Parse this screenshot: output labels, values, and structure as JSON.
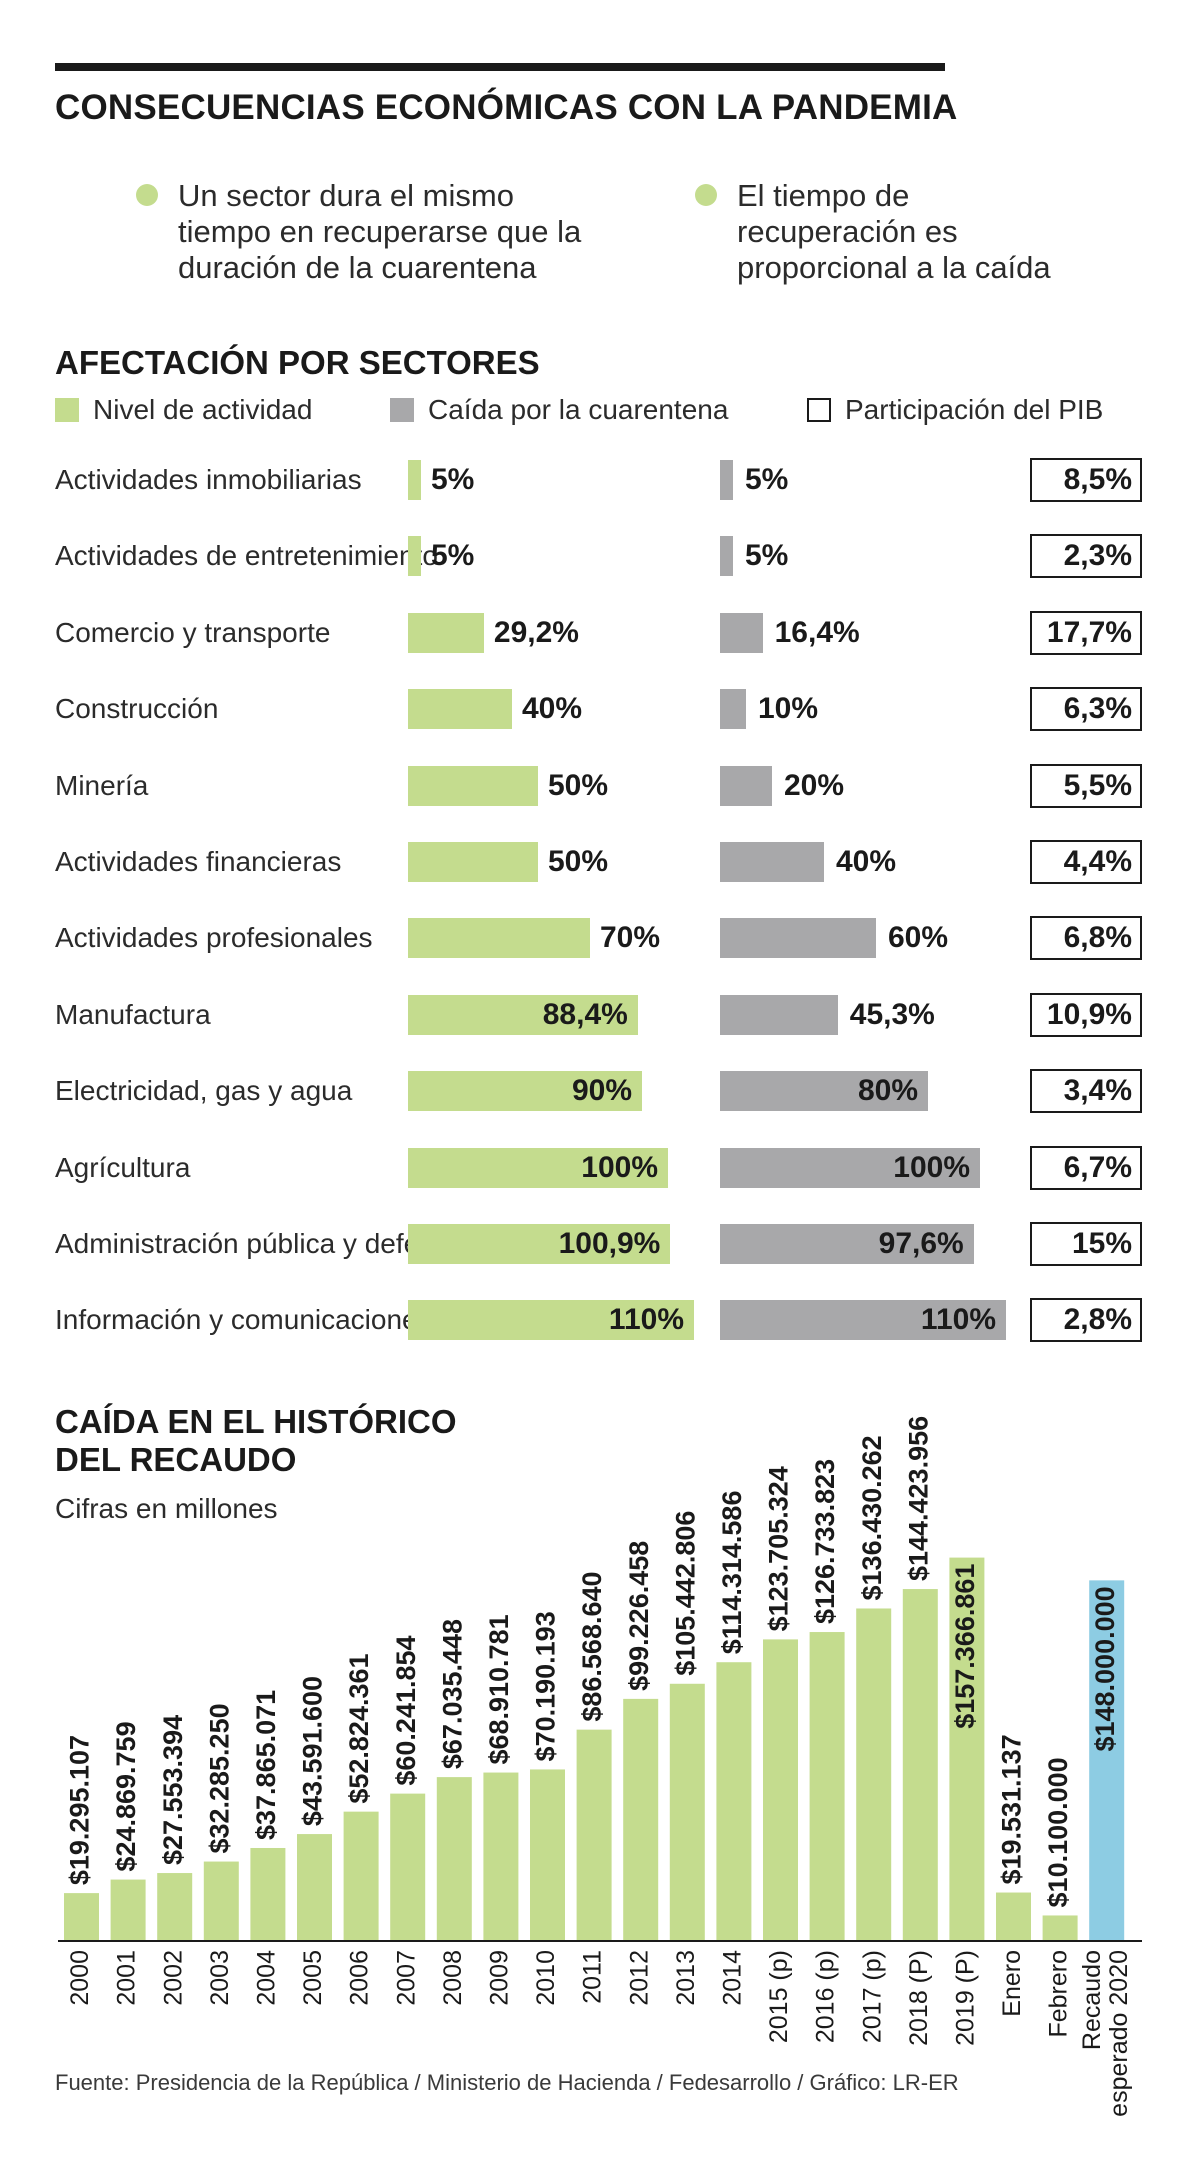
{
  "title": "CONSECUENCIAS ECONÓMICAS CON LA PANDEMIA",
  "bullets": [
    [
      "Un sector dura el mismo",
      "tiempo en recuperarse que la",
      "duración de la cuarentena"
    ],
    [
      "El tiempo de",
      "recuperación es",
      "proporcional a la caída"
    ]
  ],
  "colors": {
    "activity": "#c4dc8e",
    "drop": "#a8a8aa",
    "target": "#8dcce3",
    "bullet": "#c4dc8e"
  },
  "chart_data": [
    {
      "type": "bar",
      "orientation": "horizontal",
      "title": "AFECTACIÓN POR SECTORES",
      "legend": {
        "activity": "Nivel de actividad",
        "drop": "Caída por la cuarentena",
        "gdp_share": "Participación del PIB"
      },
      "categories": [
        "Actividades inmobiliarias",
        "Actividades de entretenimiento",
        "Comercio y transporte",
        "Construcción",
        "Minería",
        "Actividades financieras",
        "Actividades profesionales",
        "Manufactura",
        "Electricidad, gas y agua",
        "Agrícultura",
        "Administración pública y defensa",
        "Información y comunicaciones"
      ],
      "series": [
        {
          "name": "Nivel de actividad",
          "values": [
            5,
            5,
            29.2,
            40,
            50,
            50,
            70,
            88.4,
            90,
            100,
            100.9,
            110
          ],
          "labels": [
            "5%",
            "5%",
            "29,2%",
            "40%",
            "50%",
            "50%",
            "70%",
            "88,4%",
            "90%",
            "100%",
            "100,9%",
            "110%"
          ]
        },
        {
          "name": "Caída por la cuarentena",
          "values": [
            5,
            5,
            16.4,
            10,
            20,
            40,
            60,
            45.3,
            80,
            100,
            97.6,
            110
          ],
          "labels": [
            "5%",
            "5%",
            "16,4%",
            "10%",
            "20%",
            "40%",
            "60%",
            "45,3%",
            "80%",
            "100%",
            "97,6%",
            "110%"
          ]
        },
        {
          "name": "Participación del PIB",
          "values": [
            8.5,
            2.3,
            17.7,
            6.3,
            5.5,
            4.4,
            6.8,
            10.9,
            3.4,
            6.7,
            15,
            2.8
          ],
          "labels": [
            "8,5%",
            "2,3%",
            "17,7%",
            "6,3%",
            "5,5%",
            "4,4%",
            "6,8%",
            "10,9%",
            "3,4%",
            "6,7%",
            "15%",
            "2,8%"
          ]
        }
      ]
    },
    {
      "type": "bar",
      "title": "CAÍDA EN EL HISTÓRICO DEL RECAUDO",
      "title_lines": [
        "CAÍDA EN EL HISTÓRICO",
        "DEL RECAUDO"
      ],
      "subtitle": "Cifras en millones",
      "ylim": [
        0,
        160000000
      ],
      "categories": [
        [
          "2000"
        ],
        [
          "2001"
        ],
        [
          "2002"
        ],
        [
          "2003"
        ],
        [
          "2004"
        ],
        [
          "2005"
        ],
        [
          "2006"
        ],
        [
          "2007"
        ],
        [
          "2008"
        ],
        [
          "2009"
        ],
        [
          "2010"
        ],
        [
          "2011"
        ],
        [
          "2012"
        ],
        [
          "2013"
        ],
        [
          "2014"
        ],
        [
          "2015 (p)"
        ],
        [
          "2016 (p)"
        ],
        [
          "2017 (p)"
        ],
        [
          "2018 (P)"
        ],
        [
          "2019 (P)"
        ],
        [
          "Enero"
        ],
        [
          "Febrero"
        ],
        [
          "Recaudo",
          "esperado 2020"
        ]
      ],
      "values": [
        19295107,
        24869759,
        27553394,
        32285250,
        37865071,
        43591600,
        52824361,
        60241854,
        67035448,
        68910781,
        70190193,
        86568640,
        99226458,
        105442806,
        114314586,
        123705324,
        126733823,
        136430262,
        144423956,
        157366861,
        19531137,
        10100000,
        148000000
      ],
      "labels": [
        "$19.295.107",
        "$24.869.759",
        "$27.553.394",
        "$32.285.250",
        "$37.865.071",
        "$43.591.600",
        "$52.824.361",
        "$60.241.854",
        "$67.035.448",
        "$68.910.781",
        "$70.190.193",
        "$86.568.640",
        "$99.226.458",
        "$105.442.806",
        "$114.314.586",
        "$123.705.324",
        "$126.733.823",
        "$136.430.262",
        "$144.423.956",
        "$157.366.861",
        "$19.531.137",
        "$10.100.000",
        "$148.000.000"
      ],
      "highlight_index": 22,
      "inside_label_indices": [
        19,
        22
      ]
    }
  ],
  "source": "Fuente: Presidencia de la República / Ministerio de Hacienda / Fedesarrollo / Gráfico: LR-ER"
}
